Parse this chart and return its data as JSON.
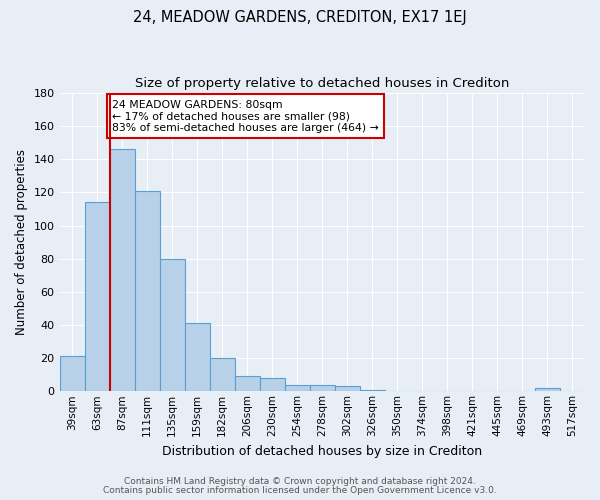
{
  "title": "24, MEADOW GARDENS, CREDITON, EX17 1EJ",
  "subtitle": "Size of property relative to detached houses in Crediton",
  "xlabel": "Distribution of detached houses by size in Crediton",
  "ylabel": "Number of detached properties",
  "footer_line1": "Contains HM Land Registry data © Crown copyright and database right 2024.",
  "footer_line2": "Contains public sector information licensed under the Open Government Licence v3.0.",
  "bins": [
    "39sqm",
    "63sqm",
    "87sqm",
    "111sqm",
    "135sqm",
    "159sqm",
    "182sqm",
    "206sqm",
    "230sqm",
    "254sqm",
    "278sqm",
    "302sqm",
    "326sqm",
    "350sqm",
    "374sqm",
    "398sqm",
    "421sqm",
    "445sqm",
    "469sqm",
    "493sqm",
    "517sqm"
  ],
  "values": [
    21,
    114,
    146,
    121,
    80,
    41,
    20,
    9,
    8,
    4,
    4,
    3,
    1,
    0,
    0,
    0,
    0,
    0,
    0,
    2,
    0
  ],
  "bar_color": "#b8d0e8",
  "bar_edge_color": "#5a9fd4",
  "property_line_color": "#cc0000",
  "annotation_text": "24 MEADOW GARDENS: 80sqm\n← 17% of detached houses are smaller (98)\n83% of semi-detached houses are larger (464) →",
  "annotation_box_color": "white",
  "annotation_box_edge": "#cc0000",
  "ylim": [
    0,
    180
  ],
  "yticks": [
    0,
    20,
    40,
    60,
    80,
    100,
    120,
    140,
    160,
    180
  ],
  "bg_color": "#e8eef6",
  "plot_bg_color": "#e8eef6",
  "grid_color": "#ffffff",
  "title_fontsize": 10.5,
  "subtitle_fontsize": 9.5,
  "footer_color": "#555555"
}
